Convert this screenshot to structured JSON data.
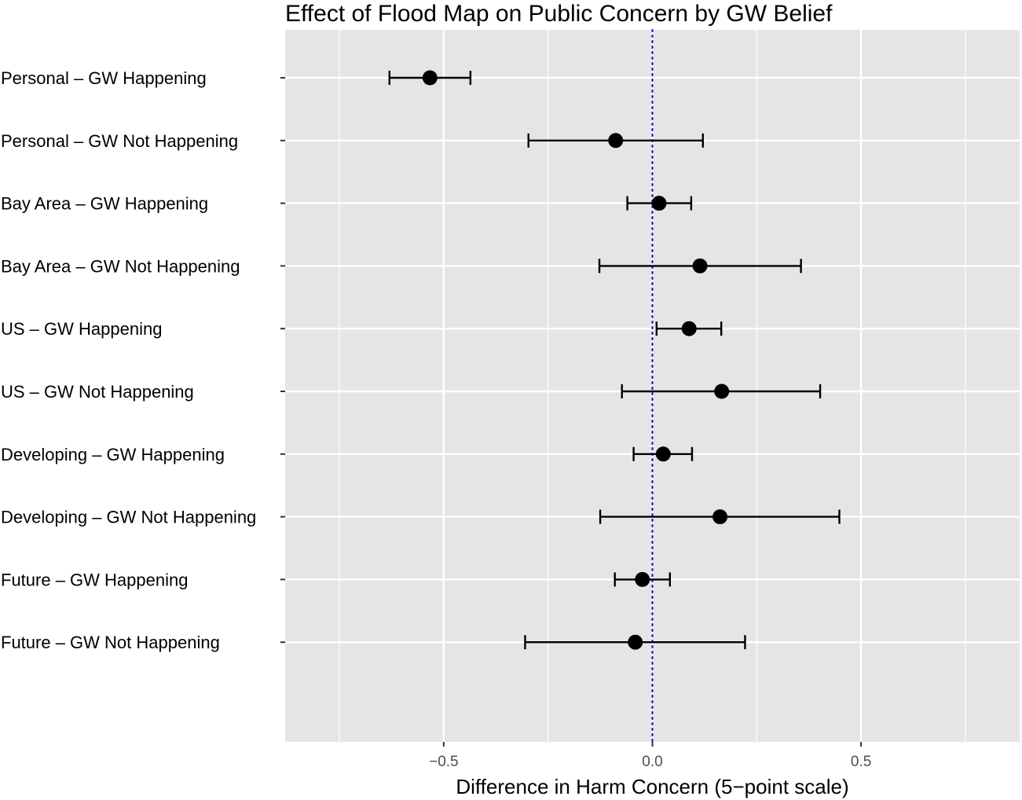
{
  "chart_data": {
    "type": "scatter",
    "title": "Effect of Flood Map on Public Concern by GW Belief",
    "xlabel": "Difference in Harm Concern (5−point scale)",
    "ylabel": "",
    "xlim": [
      -0.88,
      0.88
    ],
    "x_ticks": [
      -0.5,
      0.0,
      0.5
    ],
    "x_tick_labels": [
      "−0.5",
      "0.0",
      "0.5"
    ],
    "grid": true,
    "reference_line": {
      "x": 0,
      "style": "dotted",
      "color": "#1a1ad9"
    },
    "categories": [
      "Personal – GW Happening",
      "Personal – GW Not Happening",
      "Bay Area – GW Happening",
      "Bay Area – GW Not Happening",
      "US – GW Happening",
      "US – GW Not Happening",
      "Developing – GW Happening",
      "Developing – GW Not Happening",
      "Future – GW Happening",
      "Future – GW Not Happening"
    ],
    "series": [
      {
        "values": [
          -0.533,
          -0.088,
          0.016,
          0.114,
          0.088,
          0.166,
          0.026,
          0.162,
          -0.024,
          -0.041
        ],
        "ci_low": [
          -0.63,
          -0.297,
          -0.06,
          -0.127,
          0.01,
          -0.073,
          -0.045,
          -0.125,
          -0.09,
          -0.305
        ],
        "ci_high": [
          -0.436,
          0.121,
          0.093,
          0.356,
          0.165,
          0.402,
          0.095,
          0.448,
          0.042,
          0.222
        ]
      }
    ],
    "colors": {
      "panel_background": "#e5e5e5",
      "grid": "#ffffff",
      "points": "#000000",
      "reference_line": "#1a1ad9"
    }
  }
}
